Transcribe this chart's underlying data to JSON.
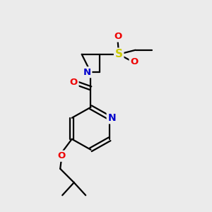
{
  "bg_color": "#ebebeb",
  "atom_colors": {
    "C": "#000000",
    "N": "#0000cc",
    "O": "#ee0000",
    "S": "#cccc00"
  },
  "bond_color": "#000000",
  "bond_width": 1.6,
  "figsize": [
    3.0,
    3.0
  ],
  "dpi": 100,
  "xlim": [
    0,
    10
  ],
  "ylim": [
    0,
    10
  ]
}
